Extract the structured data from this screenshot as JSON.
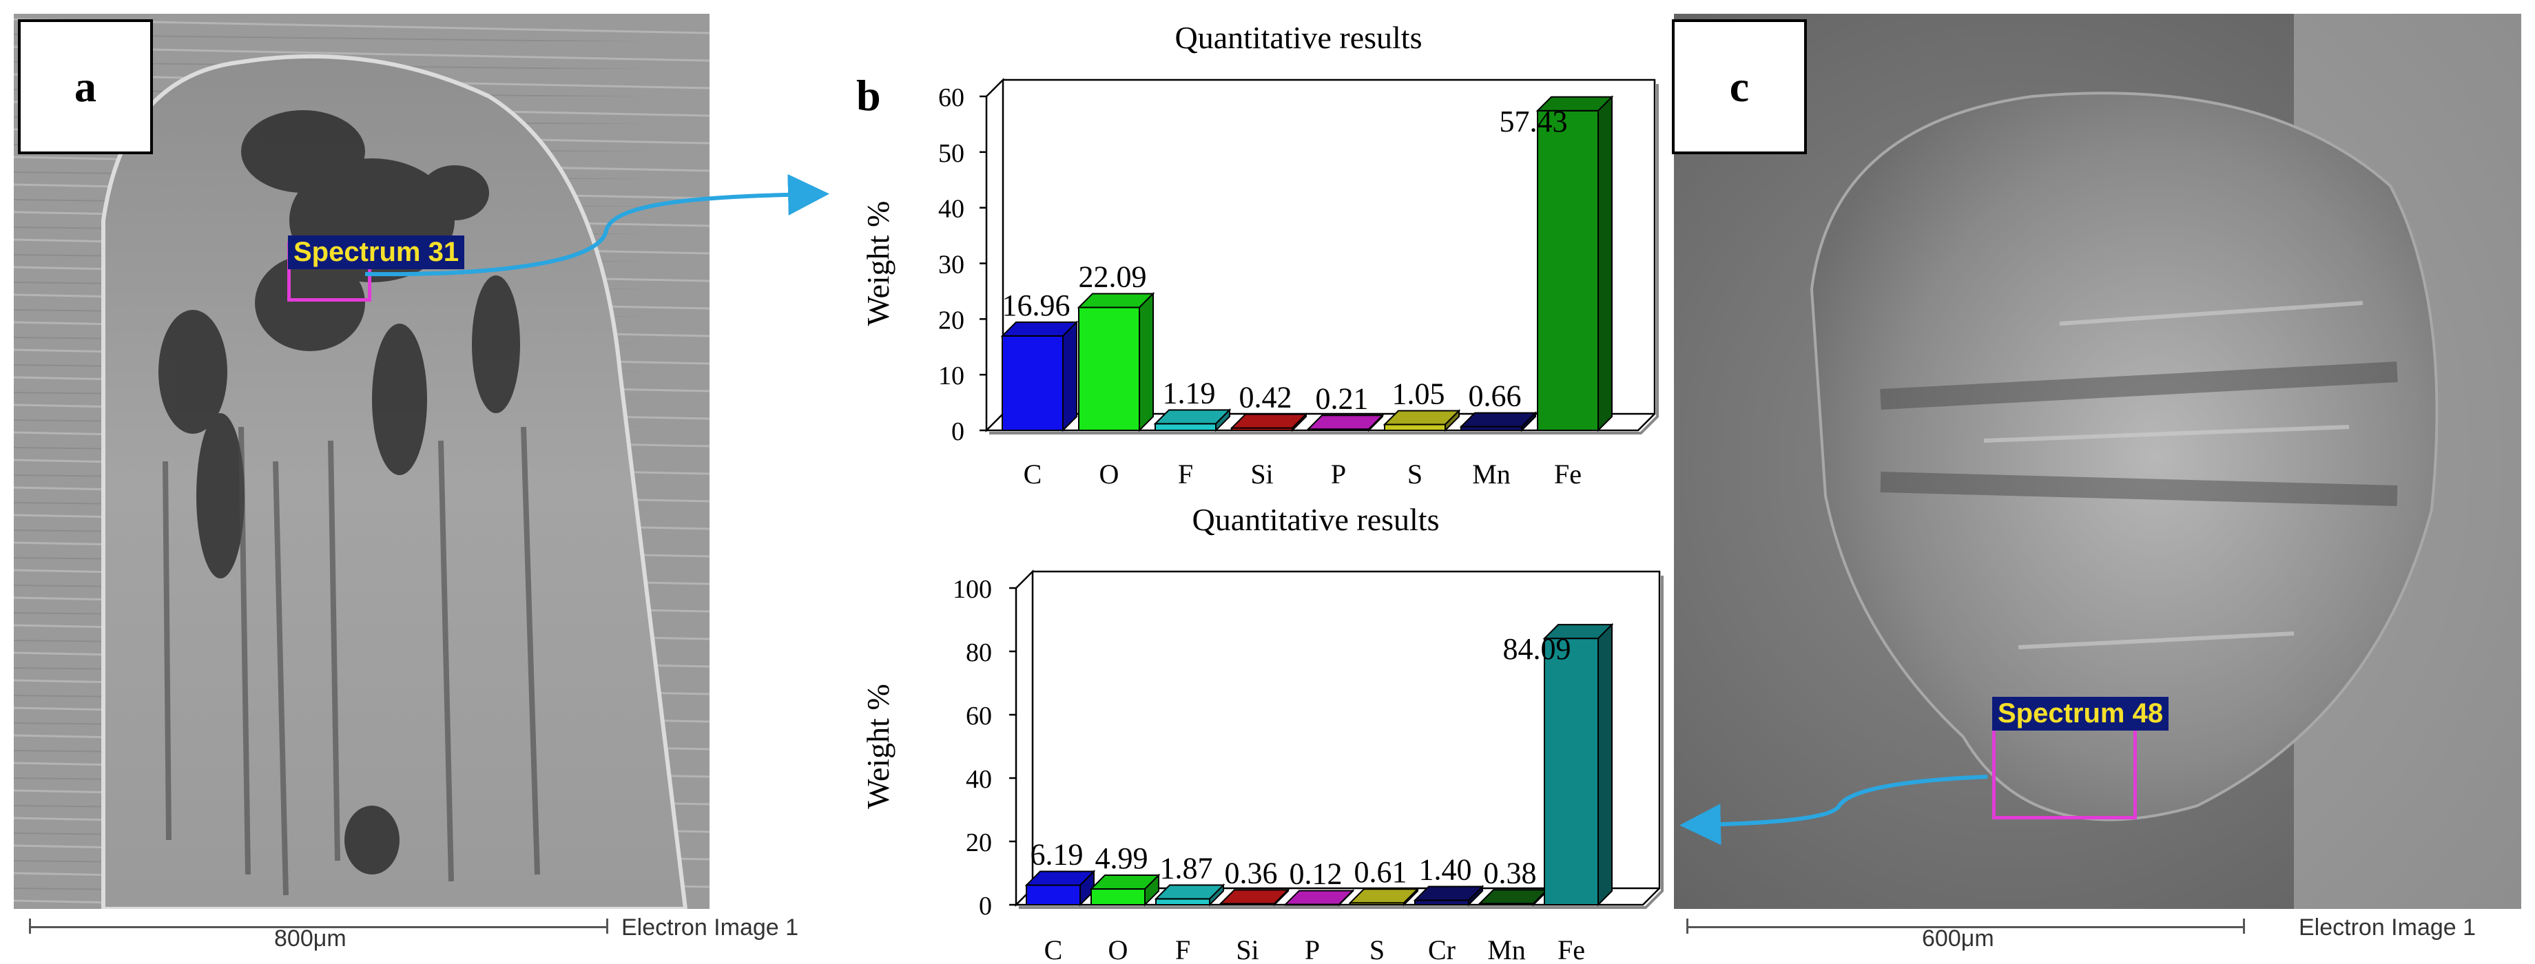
{
  "panels": {
    "a": {
      "label": "a",
      "spectrum_label": "Spectrum 31",
      "scale_text": "800μm",
      "image_label": "Electron Image 1"
    },
    "b": {
      "label": "b"
    },
    "c": {
      "label": "c",
      "spectrum_label": "Spectrum 48",
      "scale_text": "600μm",
      "image_label": "Electron Image 1"
    }
  },
  "colors": {
    "arrow": "#2aa6e0",
    "spectrum_box": "#e23cd8",
    "spectrum_label_bg": "#0c1a7a",
    "spectrum_label_text": "#f5e02a"
  },
  "chart_data": [
    {
      "type": "bar",
      "title": "Quantitative results",
      "ylabel": "Weight %",
      "xlabel": "",
      "categories": [
        "C",
        "O",
        "F",
        "Si",
        "P",
        "S",
        "Mn",
        "Fe"
      ],
      "values": [
        16.96,
        22.09,
        1.19,
        0.42,
        0.21,
        1.05,
        0.66,
        57.43
      ],
      "value_labels": [
        "16.96",
        "22.09",
        "1.19",
        "0.42",
        "0.21",
        "1.05",
        "0.66",
        "57.43"
      ],
      "colors": [
        "#1010ee",
        "#18e818",
        "#20c8c8",
        "#c81818",
        "#d020d0",
        "#c8c820",
        "#101070",
        "#109010"
      ],
      "ylim": [
        0,
        60
      ],
      "yticks": [
        0,
        10,
        20,
        30,
        40,
        50,
        60
      ],
      "grid": false
    },
    {
      "type": "bar",
      "title": "Quantitative results",
      "ylabel": "Weight %",
      "xlabel": "",
      "categories": [
        "C",
        "O",
        "F",
        "Si",
        "P",
        "S",
        "Cr",
        "Mn",
        "Fe"
      ],
      "values": [
        6.19,
        4.99,
        1.87,
        0.36,
        0.12,
        0.61,
        1.4,
        0.38,
        84.09
      ],
      "value_labels": [
        "6.19",
        "4.99",
        "1.87",
        "0.36",
        "0.12",
        "0.61",
        "1.40",
        "0.38",
        "84.09"
      ],
      "colors": [
        "#1010ee",
        "#18e818",
        "#20c8c8",
        "#c81818",
        "#d020d0",
        "#c8c820",
        "#101070",
        "#106010",
        "#108888"
      ],
      "ylim": [
        0,
        100
      ],
      "yticks": [
        0,
        20,
        40,
        60,
        80,
        100
      ],
      "grid": false
    }
  ]
}
